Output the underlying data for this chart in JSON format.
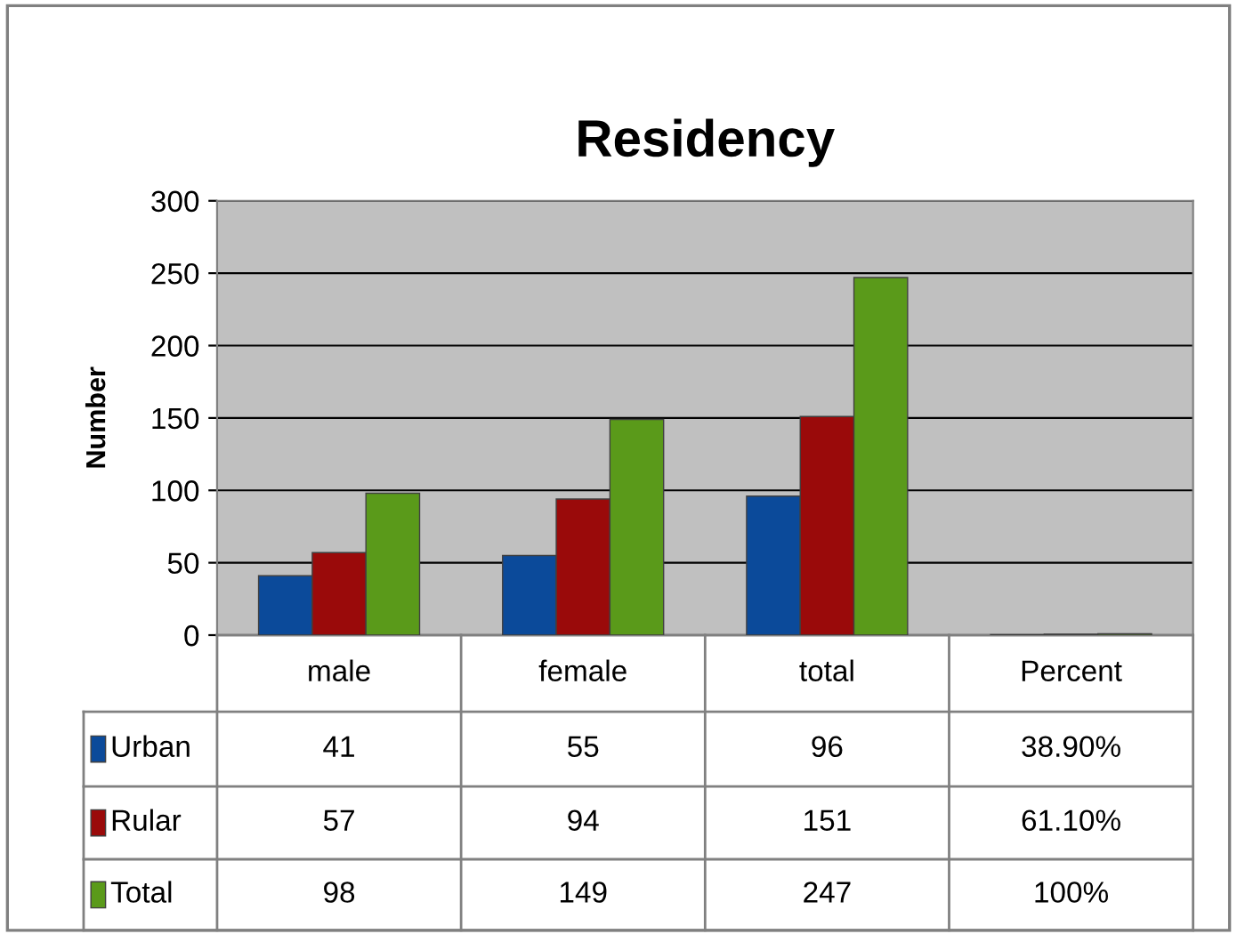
{
  "chart_data": {
    "type": "bar",
    "title": "Residency",
    "ylabel": "Number",
    "categories": [
      "male",
      "female",
      "total",
      "Percent"
    ],
    "series": [
      {
        "name": "Urban",
        "color": "#0b4a9a",
        "values": [
          41,
          55,
          96,
          0.389
        ],
        "value_labels": [
          "41",
          "55",
          "96",
          "38.90%"
        ]
      },
      {
        "name": "Rular",
        "color": "#9a0a0a",
        "values": [
          57,
          94,
          151,
          0.611
        ],
        "value_labels": [
          "57",
          "94",
          "151",
          "61.10%"
        ]
      },
      {
        "name": "Total",
        "color": "#5a9a1a",
        "values": [
          98,
          149,
          247,
          1
        ],
        "value_labels": [
          "98",
          "149",
          "247",
          "100%"
        ]
      }
    ],
    "ylim": [
      0,
      300
    ],
    "yticks": [
      0,
      50,
      100,
      150,
      200,
      250,
      300
    ],
    "grid": "y",
    "legend": "bottom left"
  }
}
